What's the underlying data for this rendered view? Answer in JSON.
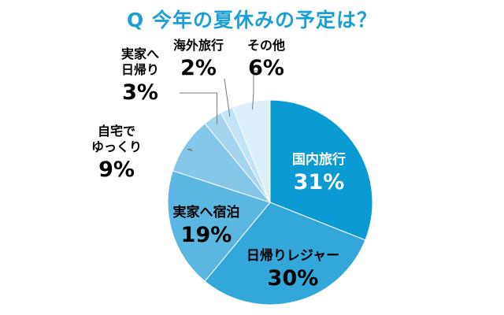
{
  "title": "Q 今年の夏休みの予定は？",
  "chart_data": {
    "type": "pie",
    "title": "Q 今年の夏休みの予定は？",
    "unit": "%",
    "slices": [
      {
        "label": "国内旅行",
        "value": 31,
        "color": "#0a9bd3",
        "label_color": "#ffffff"
      },
      {
        "label": "日帰りレジャー",
        "value": 30,
        "color": "#33a6da",
        "label_color": "#000000"
      },
      {
        "label": "実家へ宿泊",
        "value": 19,
        "color": "#5cb6e2",
        "label_color": "#000000"
      },
      {
        "label": "自宅でゆっくり",
        "value": 9,
        "color": "#85c7ea",
        "label_color": "#000000"
      },
      {
        "label": "実家へ日帰り",
        "value": 3,
        "color": "#a4d5ef",
        "label_color": "#000000"
      },
      {
        "label": "海外旅行",
        "value": 2,
        "color": "#c2e3f4",
        "label_color": "#000000"
      },
      {
        "label": "その他",
        "value": 6,
        "color": "#ddf0f9",
        "label_color": "#000000"
      }
    ]
  }
}
